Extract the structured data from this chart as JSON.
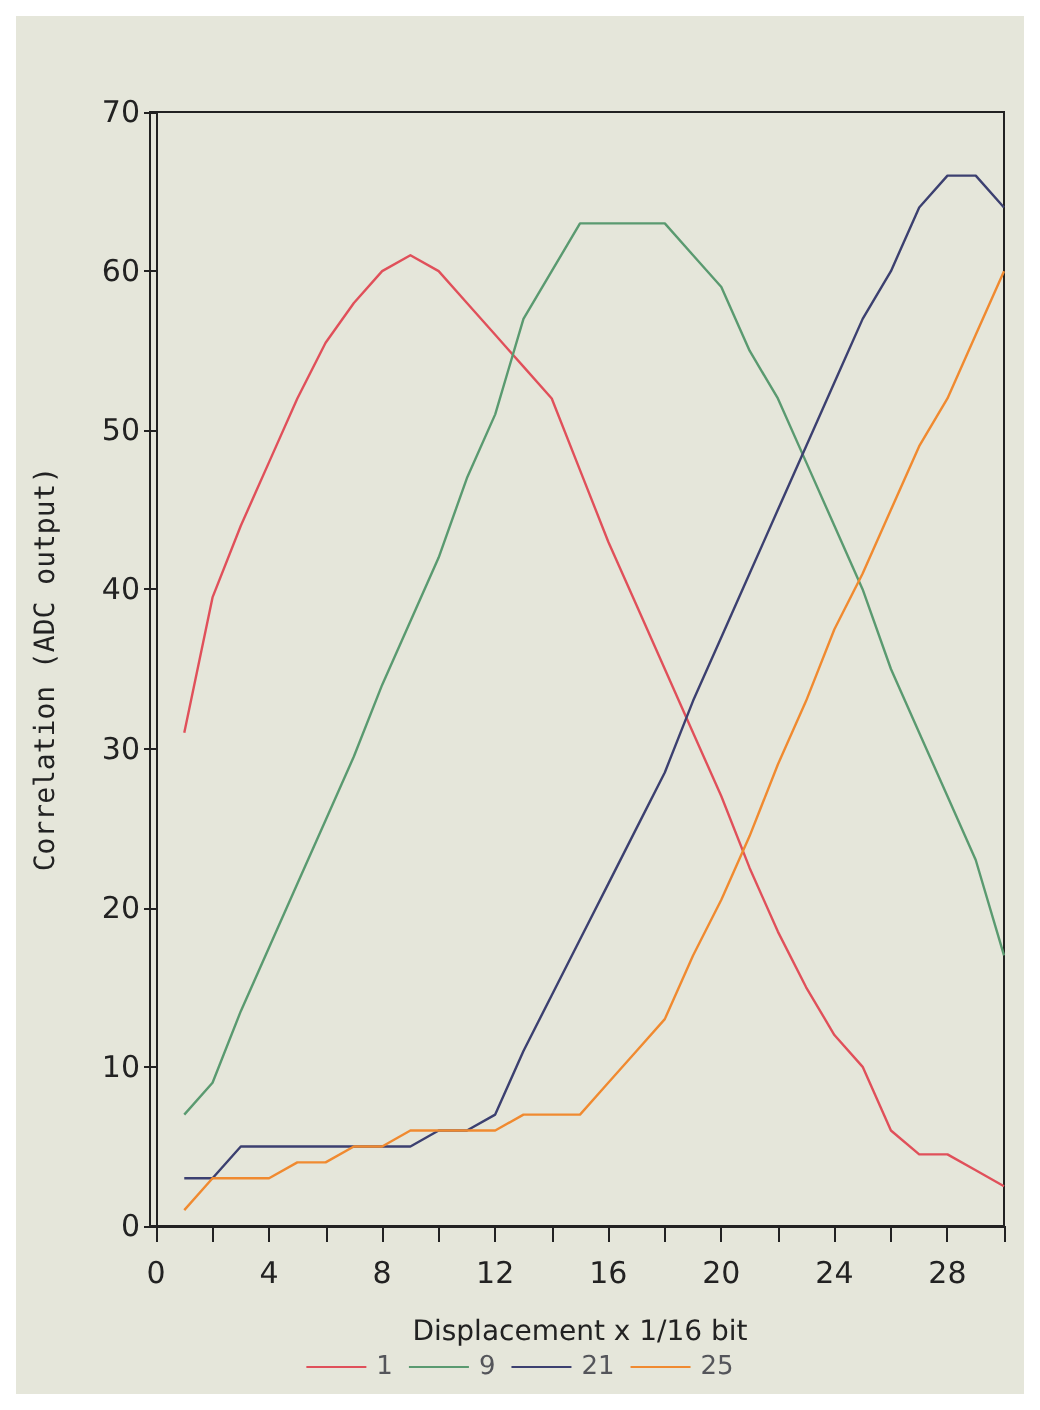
{
  "chart_data": {
    "type": "line",
    "xlabel": "Displacement x 1/16 bit",
    "ylabel": "Correlation (ADC output)",
    "x": [
      1,
      2,
      3,
      4,
      5,
      6,
      7,
      8,
      9,
      10,
      11,
      12,
      13,
      14,
      15,
      16,
      17,
      18,
      19,
      20,
      21,
      22,
      23,
      24,
      25,
      26,
      27,
      28,
      29,
      30
    ],
    "series": [
      {
        "name": "1",
        "color": "#e0505a",
        "values": [
          31,
          39.5,
          44,
          48,
          52,
          55.5,
          58,
          60,
          61,
          60,
          58,
          56,
          54,
          52,
          47.5,
          43,
          39,
          35,
          31,
          27,
          22.5,
          18.5,
          15,
          12,
          10,
          6,
          4.5,
          4.5,
          3.5,
          2.5
        ]
      },
      {
        "name": "9",
        "color": "#5a9a70",
        "values": [
          7,
          9,
          13.5,
          17.5,
          21.5,
          25.5,
          29.5,
          34,
          38,
          42,
          47,
          51,
          57,
          60,
          63,
          63,
          63,
          63,
          61,
          59,
          55,
          52,
          48,
          44,
          40,
          35,
          31,
          27,
          23,
          17
        ]
      },
      {
        "name": "21",
        "color": "#3c4070",
        "values": [
          3,
          3,
          5,
          5,
          5,
          5,
          5,
          5,
          5,
          6,
          6,
          7,
          11,
          14.5,
          18,
          21.5,
          25,
          28.5,
          33,
          37,
          41,
          45,
          49,
          53,
          57,
          60,
          64,
          66,
          66,
          64
        ]
      },
      {
        "name": "25",
        "color": "#f08a30",
        "values": [
          1,
          3,
          3,
          3,
          4,
          4,
          5,
          5,
          6,
          6,
          6,
          6,
          7,
          7,
          7,
          9,
          11,
          13,
          17,
          20.5,
          24.5,
          29,
          33,
          37.5,
          41,
          45,
          49,
          52,
          56,
          60
        ]
      }
    ],
    "xlim": [
      0,
      30
    ],
    "xticks": [
      0,
      {
        "value": 2,
        "label": null
      },
      4,
      {
        "value": 6,
        "label": null
      },
      8,
      {
        "value": 10,
        "label": null
      },
      12,
      {
        "value": 14,
        "label": null
      },
      16,
      {
        "value": 18,
        "label": null
      },
      20,
      {
        "value": 22,
        "label": null
      },
      24,
      {
        "value": 26,
        "label": null
      },
      28,
      {
        "value": 30,
        "label": null
      }
    ],
    "ylim": [
      0,
      70
    ],
    "yticks": [
      0,
      10,
      20,
      30,
      40,
      50,
      60,
      70
    ],
    "grid": false,
    "legend": "bottom",
    "marker": "none",
    "line_style": "solid"
  }
}
